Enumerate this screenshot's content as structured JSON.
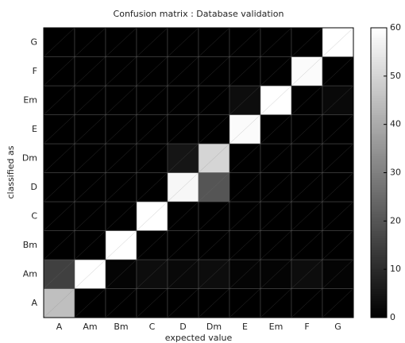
{
  "chart_data": {
    "type": "heatmap",
    "title": "Confusion matrix : Database validation",
    "x_label": "expected value",
    "y_label": "classified as",
    "x_categories": [
      "A",
      "Am",
      "Bm",
      "C",
      "D",
      "Dm",
      "E",
      "Em",
      "F",
      "G"
    ],
    "y_categories": [
      "A",
      "Am",
      "Bm",
      "C",
      "D",
      "Dm",
      "E",
      "Em",
      "F",
      "G"
    ],
    "values": [
      [
        45,
        0,
        0,
        0,
        0,
        0,
        0,
        0,
        0,
        0
      ],
      [
        15,
        60,
        1,
        3,
        2,
        3,
        1,
        1,
        3,
        1
      ],
      [
        0,
        0,
        60,
        0,
        0,
        0,
        0,
        0,
        0,
        0
      ],
      [
        0,
        0,
        0,
        60,
        0,
        0,
        0,
        0,
        0,
        0
      ],
      [
        0,
        0,
        0,
        0,
        58,
        20,
        0,
        0,
        0,
        0
      ],
      [
        0,
        0,
        0,
        0,
        5,
        50,
        0,
        0,
        0,
        0
      ],
      [
        0,
        0,
        0,
        0,
        0,
        0,
        59,
        0,
        0,
        0
      ],
      [
        0,
        0,
        0,
        0,
        0,
        0,
        3,
        60,
        0,
        2
      ],
      [
        0,
        0,
        0,
        0,
        0,
        0,
        0,
        0,
        59,
        0
      ],
      [
        0,
        0,
        0,
        0,
        0,
        0,
        0,
        0,
        0,
        60
      ]
    ],
    "colormap": "gray",
    "zlim": [
      0,
      60
    ],
    "zticks": [
      0,
      10,
      20,
      30,
      40,
      50,
      60
    ]
  }
}
